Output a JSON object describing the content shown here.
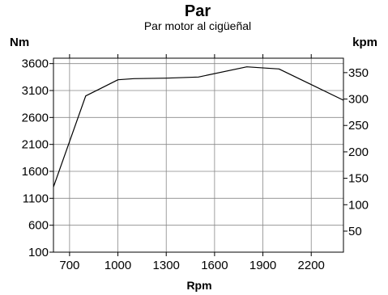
{
  "chart_data": {
    "type": "line",
    "title": "Par",
    "subtitle": "Par motor al  cigüeñal",
    "ylabel_left": "Nm",
    "ylabel_right": "kpm",
    "xlabel": "Rpm",
    "xlim": [
      600,
      2400
    ],
    "ylim": [
      100,
      3700
    ],
    "y2lim": [
      10.2,
      377.3
    ],
    "x_ticks": [
      700,
      1000,
      1300,
      1600,
      1900,
      2200
    ],
    "y_ticks": [
      100,
      600,
      1100,
      1600,
      2100,
      2600,
      3100,
      3600
    ],
    "y2_ticks": [
      50,
      100,
      150,
      200,
      250,
      300,
      350
    ],
    "grid": true,
    "series": [
      {
        "x": [
          600,
          800,
          1000,
          1100,
          1300,
          1500,
          1800,
          2000,
          2400
        ],
        "y": [
          1310,
          3000,
          3300,
          3320,
          3330,
          3350,
          3540,
          3500,
          2920
        ],
        "color": "#000000"
      }
    ]
  }
}
